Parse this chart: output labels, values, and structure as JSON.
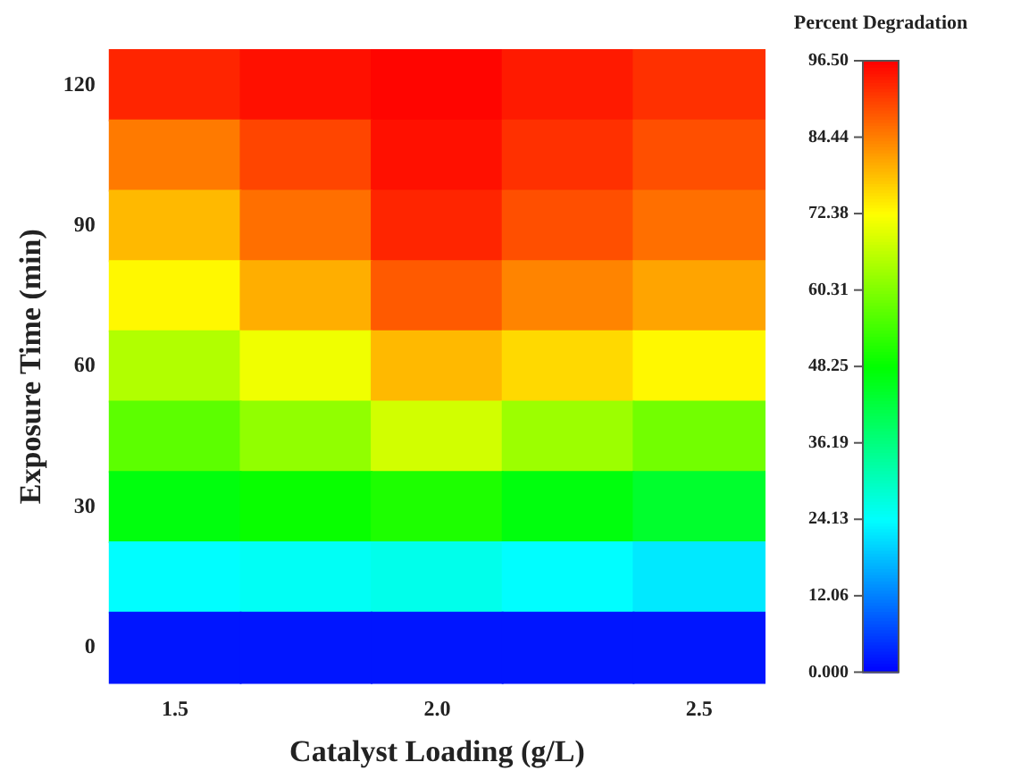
{
  "chart_data": {
    "type": "heatmap",
    "xlabel": "Catalyst Loading (g/L)",
    "ylabel": "Exposure Time (min)",
    "clabel": "Percent Degradation",
    "categories": [
      "1.5",
      null,
      "2.0",
      null,
      "2.5"
    ],
    "y_categories": [
      "120",
      null,
      "90",
      null,
      "60",
      null,
      "30",
      null,
      "0"
    ],
    "cells": [
      [
        93,
        95,
        96,
        94,
        92
      ],
      [
        85,
        90,
        95,
        92,
        89
      ],
      [
        79,
        86,
        93,
        89,
        86
      ],
      [
        73,
        80,
        88,
        84,
        81
      ],
      [
        65,
        71,
        79,
        76,
        73
      ],
      [
        57,
        62,
        68,
        63,
        59
      ],
      [
        47,
        49,
        51,
        47,
        44
      ],
      [
        24,
        25,
        26,
        24,
        22
      ],
      [
        2,
        2,
        2,
        2,
        2
      ]
    ],
    "clim": [
      0,
      96.5
    ],
    "cticks": [
      {
        "value": 0,
        "label": "0.000"
      },
      12.06,
      24.13,
      36.19,
      48.25,
      60.31,
      72.38,
      84.44,
      {
        "value": 96.5,
        "label": "96.50"
      }
    ]
  }
}
